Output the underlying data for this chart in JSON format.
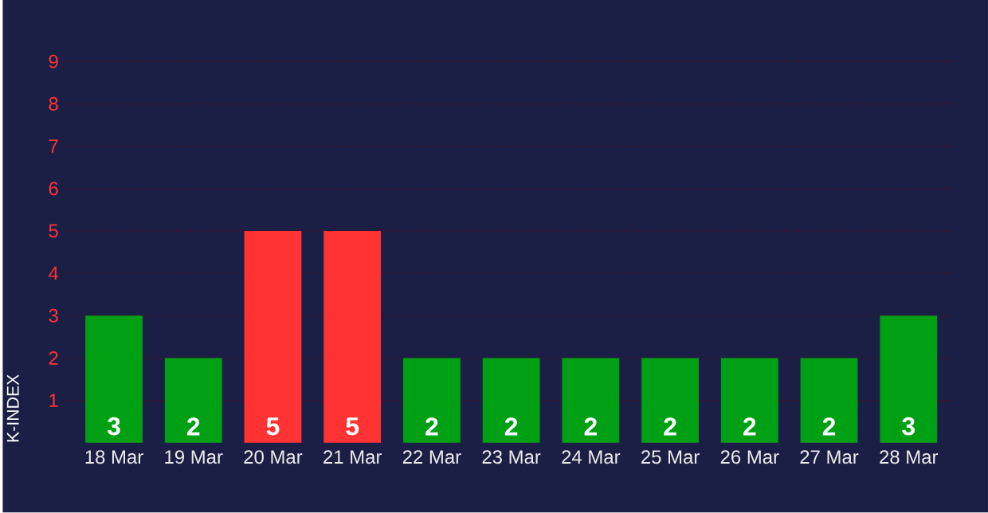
{
  "chart_data": {
    "type": "bar",
    "ylabel": "K-INDEX",
    "categories": [
      "18 Mar",
      "19 Mar",
      "20 Mar",
      "21 Mar",
      "22 Mar",
      "23 Mar",
      "24 Mar",
      "25 Mar",
      "26 Mar",
      "27 Mar",
      "28 Mar"
    ],
    "values": [
      3,
      2,
      5,
      5,
      2,
      2,
      2,
      2,
      2,
      2,
      3
    ],
    "colors": [
      "#00a014",
      "#00a014",
      "#ff3333",
      "#ff3333",
      "#00a014",
      "#00a014",
      "#00a014",
      "#00a014",
      "#00a014",
      "#00a014",
      "#00a014"
    ],
    "ylim": [
      0,
      9
    ],
    "yticks": [
      1,
      2,
      3,
      4,
      5,
      6,
      7,
      8,
      9
    ],
    "grid": "y",
    "data_labels": true
  }
}
